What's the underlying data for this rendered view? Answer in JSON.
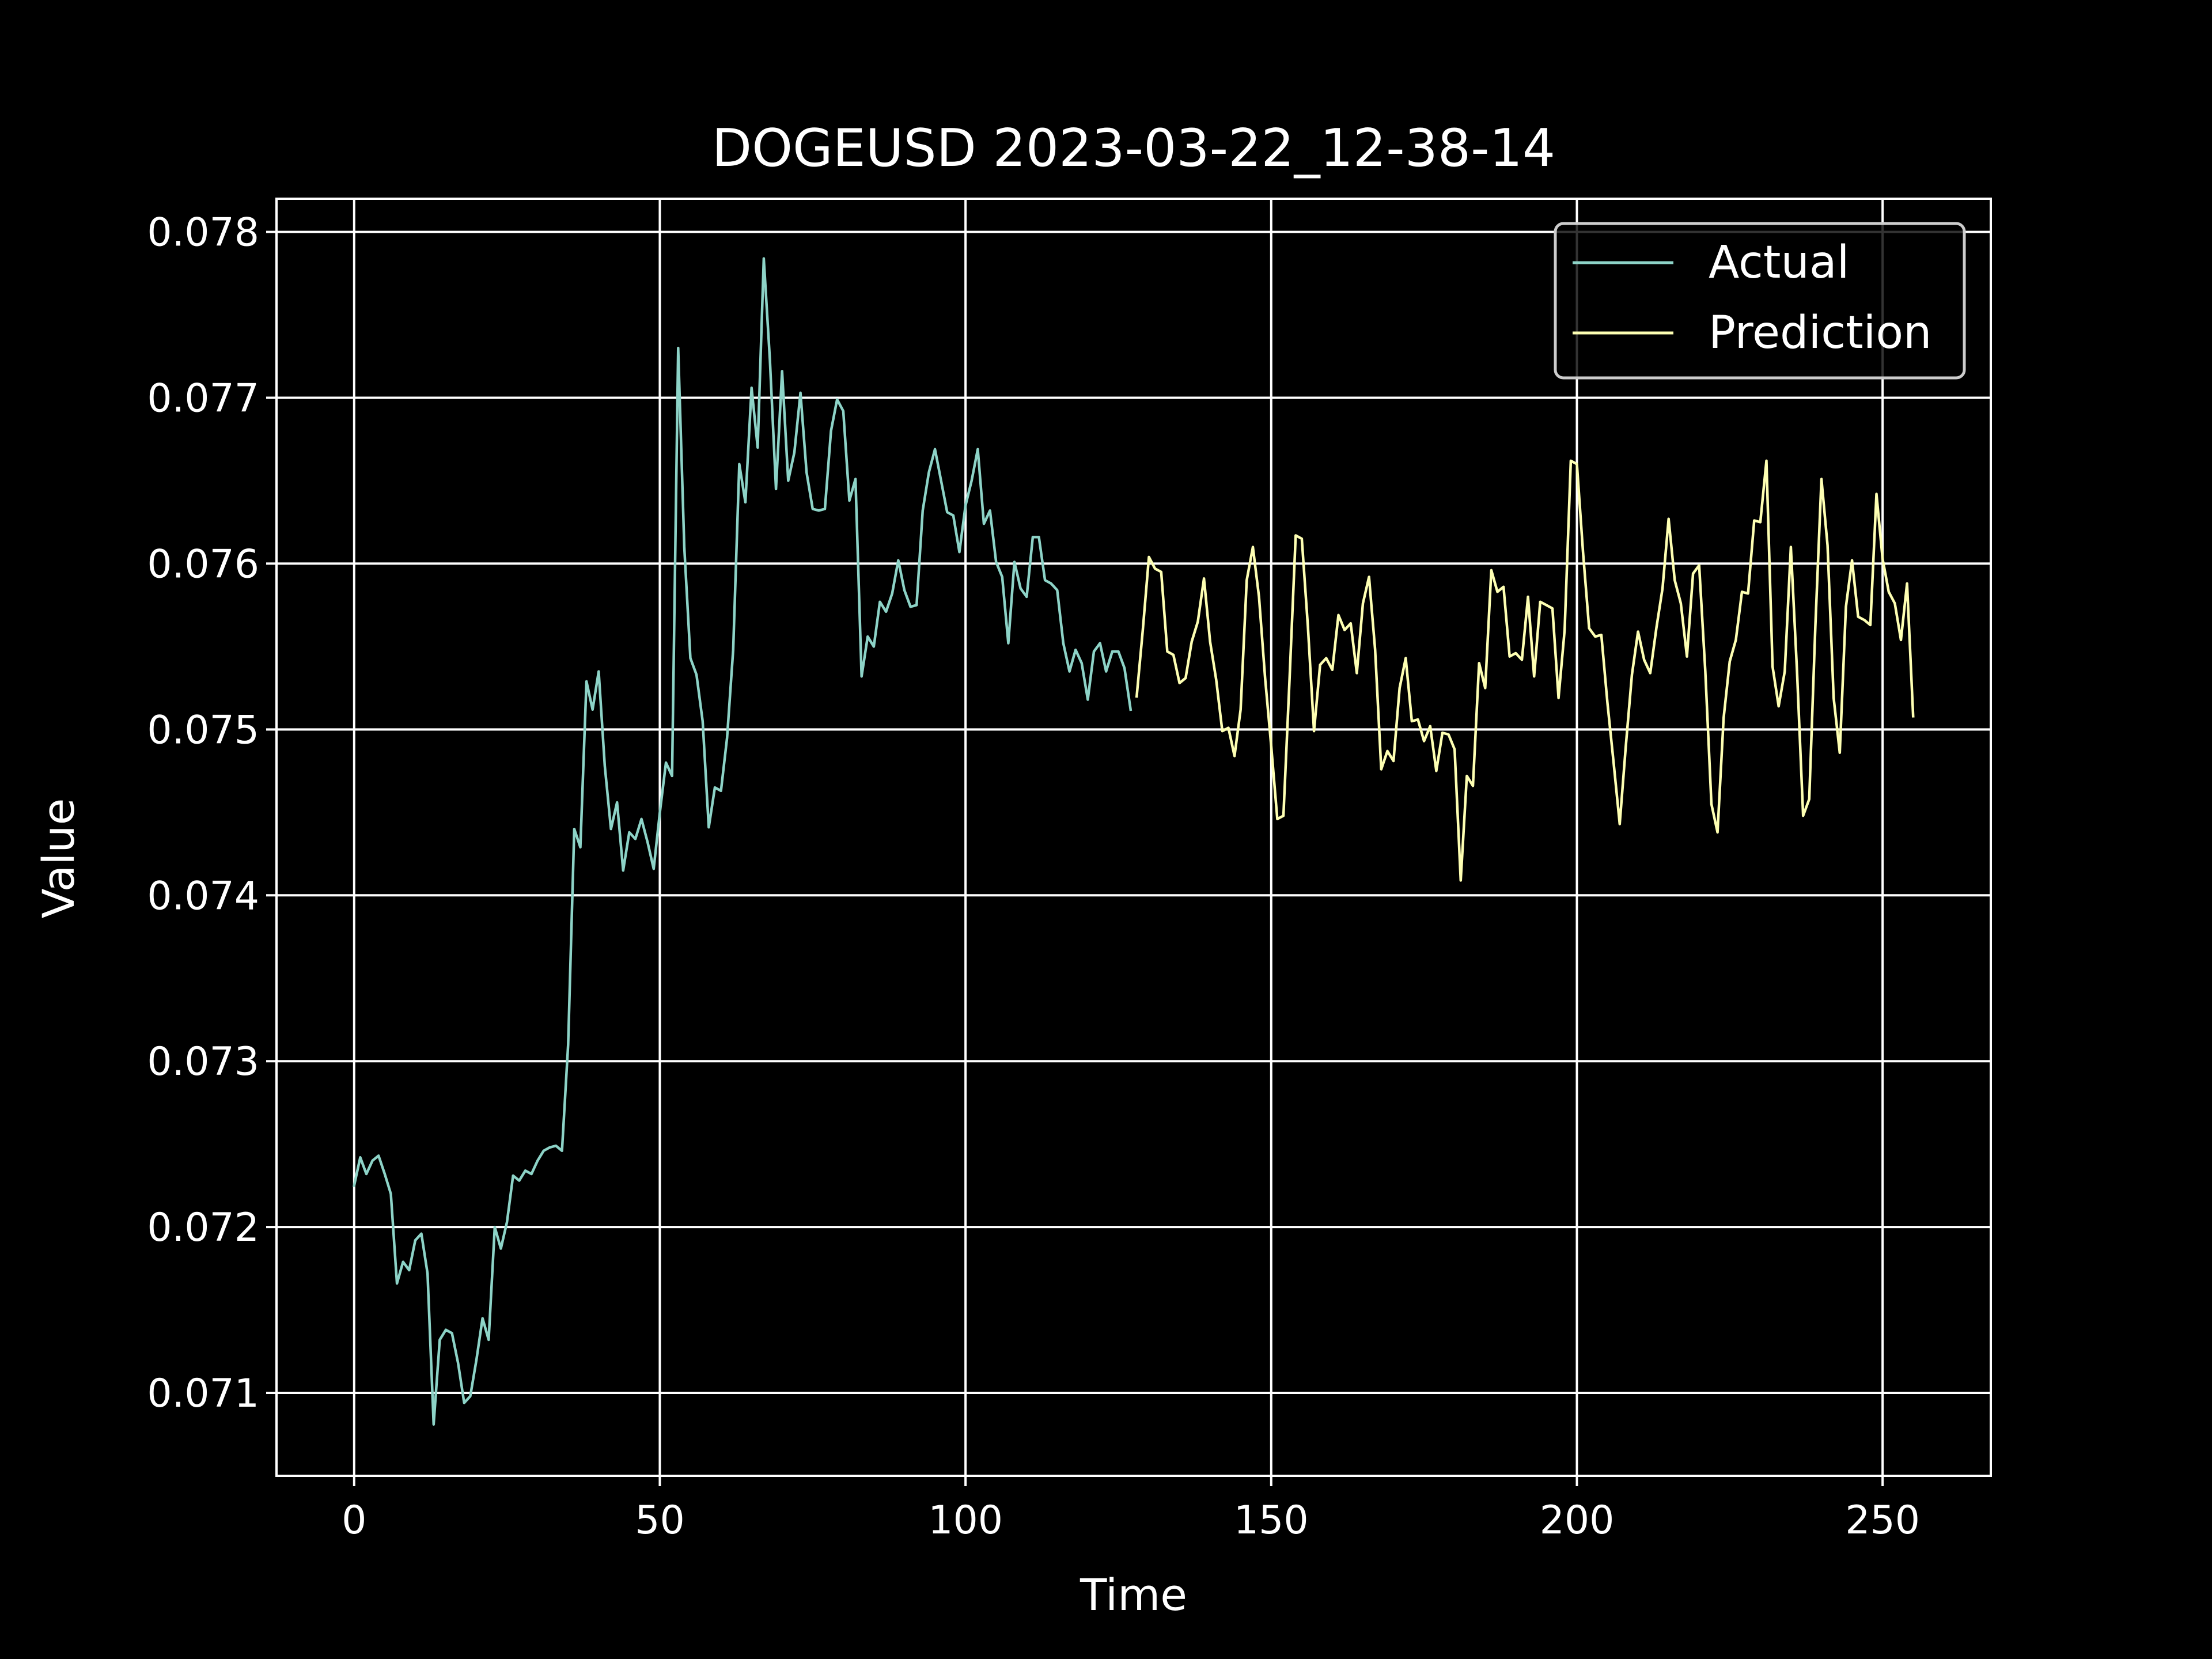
{
  "chart_data": {
    "type": "line",
    "title": "DOGEUSD 2023-03-22_12-38-14",
    "xlabel": "Time",
    "ylabel": "Value",
    "xlim": [
      -12.7,
      267.7
    ],
    "ylim": [
      0.0705,
      0.0782
    ],
    "xticks": [
      0,
      50,
      100,
      150,
      200,
      250
    ],
    "yticks": [
      0.071,
      0.072,
      0.073,
      0.074,
      0.075,
      0.076,
      0.077,
      0.078
    ],
    "xtick_labels": [
      "0",
      "50",
      "100",
      "150",
      "200",
      "250"
    ],
    "ytick_labels": [
      "0.071",
      "0.072",
      "0.073",
      "0.074",
      "0.075",
      "0.076",
      "0.077",
      "0.078"
    ],
    "grid": true,
    "legend_position": "upper-right",
    "colors": {
      "background": "#000000",
      "foreground": "#ffffff",
      "actual": "#8dd3c7",
      "prediction": "#feffb3"
    },
    "series": [
      {
        "name": "Actual",
        "color": "#8dd3c7",
        "x_start": 0,
        "values": [
          0.07225,
          0.07242,
          0.07232,
          0.0724,
          0.07243,
          0.07232,
          0.0722,
          0.07166,
          0.07179,
          0.07174,
          0.07192,
          0.07196,
          0.07172,
          0.07081,
          0.07132,
          0.07138,
          0.07136,
          0.07118,
          0.07094,
          0.07098,
          0.0712,
          0.07145,
          0.07132,
          0.072,
          0.07187,
          0.07203,
          0.07231,
          0.07228,
          0.07234,
          0.07232,
          0.0724,
          0.07246,
          0.07248,
          0.07249,
          0.07246,
          0.0731,
          0.0744,
          0.07429,
          0.07529,
          0.07512,
          0.07535,
          0.07478,
          0.0744,
          0.07456,
          0.07415,
          0.07438,
          0.07434,
          0.07446,
          0.07432,
          0.07416,
          0.0745,
          0.0748,
          0.07472,
          0.0773,
          0.0761,
          0.07543,
          0.07533,
          0.07505,
          0.07441,
          0.07465,
          0.07463,
          0.07495,
          0.07548,
          0.0766,
          0.07637,
          0.07706,
          0.0767,
          0.07784,
          0.07723,
          0.07645,
          0.07716,
          0.0765,
          0.07667,
          0.07703,
          0.07655,
          0.07633,
          0.07632,
          0.07633,
          0.0768,
          0.07699,
          0.07692,
          0.07638,
          0.07651,
          0.07532,
          0.07556,
          0.0755,
          0.07577,
          0.07571,
          0.07582,
          0.07602,
          0.07584,
          0.07574,
          0.07575,
          0.07632,
          0.07655,
          0.07669,
          0.0765,
          0.07631,
          0.07629,
          0.07607,
          0.07635,
          0.0765,
          0.07669,
          0.07624,
          0.07632,
          0.07601,
          0.07592,
          0.07552,
          0.07601,
          0.07585,
          0.0758,
          0.07616,
          0.07616,
          0.0759,
          0.07588,
          0.07584,
          0.07552,
          0.07535,
          0.07548,
          0.0754,
          0.07518,
          0.07547,
          0.07552,
          0.07535,
          0.07547,
          0.07547,
          0.07537,
          0.07512
        ]
      },
      {
        "name": "Prediction",
        "color": "#feffb3",
        "x_start": 128,
        "values": [
          0.0752,
          0.0756,
          0.07604,
          0.07597,
          0.07595,
          0.07547,
          0.07545,
          0.07528,
          0.07531,
          0.07553,
          0.07565,
          0.07591,
          0.07553,
          0.0753,
          0.07499,
          0.07501,
          0.07484,
          0.07512,
          0.0759,
          0.0761,
          0.0758,
          0.07531,
          0.0749,
          0.07446,
          0.07448,
          0.0753,
          0.07617,
          0.07615,
          0.07562,
          0.07499,
          0.07539,
          0.07543,
          0.07536,
          0.07569,
          0.0756,
          0.07564,
          0.07534,
          0.07576,
          0.07592,
          0.07548,
          0.07476,
          0.07487,
          0.07481,
          0.07525,
          0.07543,
          0.07505,
          0.07506,
          0.07493,
          0.07502,
          0.07475,
          0.07498,
          0.07497,
          0.07488,
          0.07409,
          0.07472,
          0.07466,
          0.0754,
          0.07525,
          0.07596,
          0.07583,
          0.07586,
          0.07544,
          0.07546,
          0.07542,
          0.0758,
          0.07532,
          0.07577,
          0.07575,
          0.07573,
          0.07519,
          0.0756,
          0.07662,
          0.0766,
          0.07607,
          0.07561,
          0.07556,
          0.07557,
          0.07516,
          0.0748,
          0.07443,
          0.0749,
          0.07533,
          0.07559,
          0.07542,
          0.07534,
          0.07561,
          0.07585,
          0.07627,
          0.0759,
          0.07576,
          0.07544,
          0.07594,
          0.07599,
          0.07535,
          0.07455,
          0.07438,
          0.07507,
          0.07541,
          0.07554,
          0.07583,
          0.07582,
          0.07626,
          0.07625,
          0.07662,
          0.07538,
          0.07514,
          0.07535,
          0.0761,
          0.07535,
          0.07448,
          0.07458,
          0.07562,
          0.07651,
          0.07611,
          0.07519,
          0.07486,
          0.07574,
          0.07602,
          0.07568,
          0.07566,
          0.07563,
          0.07642,
          0.07603,
          0.07583,
          0.07576,
          0.07554,
          0.07588,
          0.07508
        ]
      }
    ]
  }
}
